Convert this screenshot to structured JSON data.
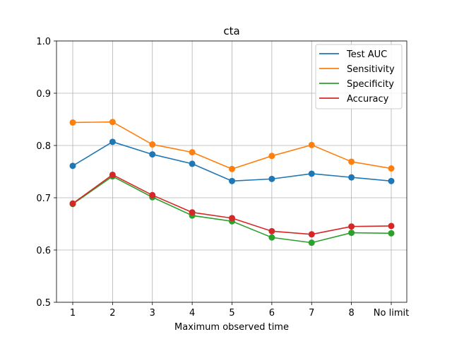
{
  "chart_data": {
    "type": "line",
    "title": "cta",
    "xlabel": "Maximum observed time",
    "ylabel": "",
    "categories": [
      "1",
      "2",
      "3",
      "4",
      "5",
      "6",
      "7",
      "8",
      "No limit"
    ],
    "ylim": [
      0.5,
      1.0
    ],
    "yticks": [
      "0.5",
      "0.6",
      "0.7",
      "0.8",
      "0.9",
      "1.0"
    ],
    "grid": true,
    "legend_position": "top-right",
    "series": [
      {
        "name": "Test AUC",
        "color": "#1f77b4",
        "values": [
          0.761,
          0.807,
          0.783,
          0.765,
          0.732,
          0.736,
          0.746,
          0.739,
          0.732
        ]
      },
      {
        "name": "Sensitivity",
        "color": "#ff7f0e",
        "values": [
          0.844,
          0.845,
          0.802,
          0.787,
          0.755,
          0.78,
          0.801,
          0.769,
          0.756
        ]
      },
      {
        "name": "Specificity",
        "color": "#2ca02c",
        "values": [
          0.688,
          0.741,
          0.701,
          0.666,
          0.655,
          0.624,
          0.614,
          0.633,
          0.632
        ]
      },
      {
        "name": "Accuracy",
        "color": "#d62728",
        "values": [
          0.689,
          0.744,
          0.705,
          0.672,
          0.661,
          0.636,
          0.63,
          0.645,
          0.646
        ]
      }
    ]
  }
}
